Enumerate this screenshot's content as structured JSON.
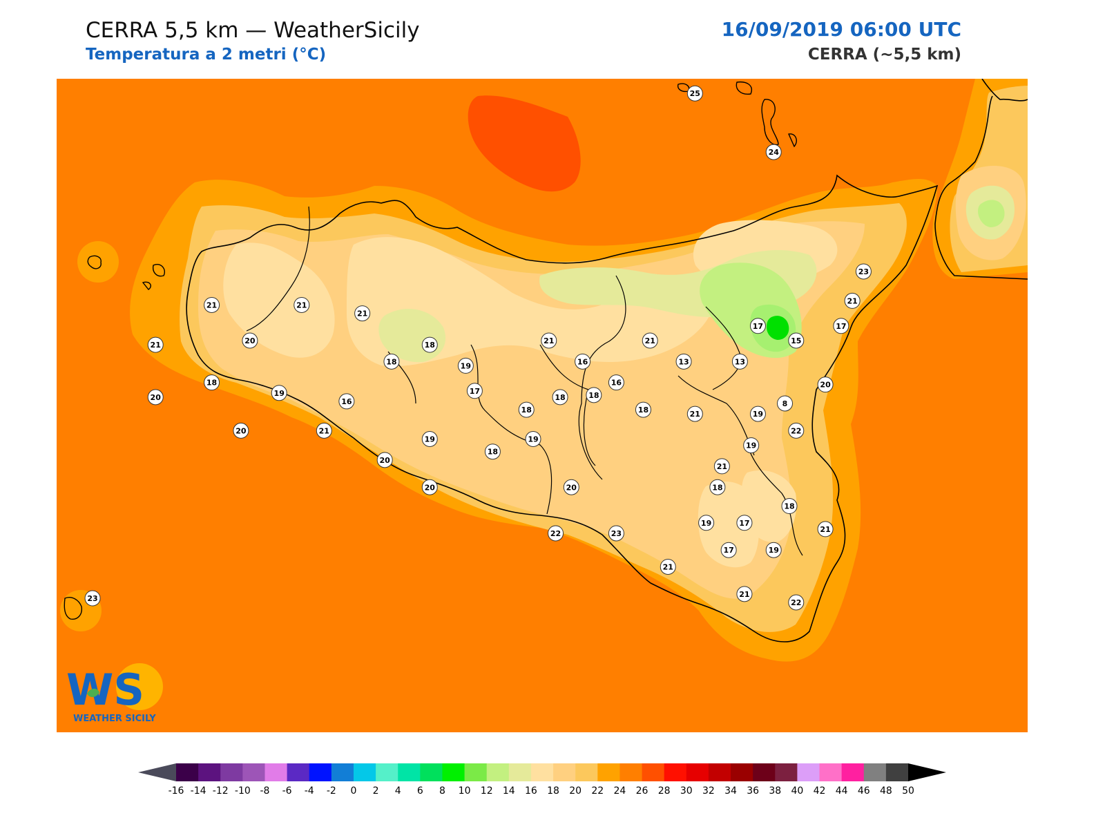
{
  "header": {
    "title": "CERRA 5,5 km — WeatherSicily",
    "subtitle": "Temperatura a 2 metri (°C)",
    "datetime": "16/09/2019 06:00 UTC",
    "model": "CERRA (~5,5 km)"
  },
  "logo": {
    "letters": "WS",
    "text": "WEATHER SICILY"
  },
  "colors": {
    "sea": "#ff7f00",
    "coast_band": "#ffa200",
    "inland_warm": "#fcc85c",
    "inland_mid": "#ffd080",
    "inland_cool": "#ffe0a0",
    "highland": "#e5ea9a",
    "etna_green": "#a6f070",
    "etna_core": "#00e000",
    "hot_spot": "#ff5000",
    "border": "#000000"
  },
  "colorbar": {
    "ticks": [
      "-16",
      "-14",
      "-12",
      "-10",
      "-8",
      "-6",
      "-4",
      "-2",
      "0",
      "2",
      "4",
      "6",
      "8",
      "10",
      "12",
      "14",
      "16",
      "18",
      "20",
      "22",
      "24",
      "26",
      "28",
      "30",
      "32",
      "34",
      "36",
      "38",
      "40",
      "42",
      "44",
      "46",
      "48",
      "50"
    ],
    "colors": [
      "#3b0049",
      "#5c137f",
      "#7e3aa1",
      "#9d55b7",
      "#e17ce8",
      "#5b29c4",
      "#0013ff",
      "#127ed6",
      "#04c8e8",
      "#55f0c9",
      "#00e4a6",
      "#00e05c",
      "#00f000",
      "#7bea47",
      "#c3f080",
      "#e5ea9a",
      "#ffe0a0",
      "#ffd080",
      "#fcc85c",
      "#ffa200",
      "#ff7f00",
      "#ff5000",
      "#ff1000",
      "#e60000",
      "#c20000",
      "#9a0000",
      "#6d0019",
      "#7c2040",
      "#dc9ef8",
      "#ff70c8",
      "#ff20a0",
      "#808080",
      "#404040"
    ]
  },
  "stations": [
    {
      "label": "25",
      "lon": 14.6,
      "lat": 39.23
    },
    {
      "label": "24",
      "lon": 14.95,
      "lat": 38.95
    },
    {
      "label": "23",
      "lon": 15.35,
      "lat": 38.38
    },
    {
      "label": "21",
      "lon": 12.45,
      "lat": 38.22
    },
    {
      "label": "21",
      "lon": 12.85,
      "lat": 38.22
    },
    {
      "label": "21",
      "lon": 13.12,
      "lat": 38.18
    },
    {
      "label": "21",
      "lon": 13.95,
      "lat": 38.05
    },
    {
      "label": "21",
      "lon": 14.4,
      "lat": 38.05
    },
    {
      "label": "21",
      "lon": 15.3,
      "lat": 38.24
    },
    {
      "label": "21",
      "lon": 12.2,
      "lat": 38.03
    },
    {
      "label": "21",
      "lon": 12.95,
      "lat": 37.62
    },
    {
      "label": "20",
      "lon": 12.62,
      "lat": 38.05
    },
    {
      "label": "20",
      "lon": 12.2,
      "lat": 37.78
    },
    {
      "label": "20",
      "lon": 12.58,
      "lat": 37.62
    },
    {
      "label": "20",
      "lon": 15.18,
      "lat": 37.84
    },
    {
      "label": "20",
      "lon": 13.22,
      "lat": 37.48
    },
    {
      "label": "20",
      "lon": 13.42,
      "lat": 37.35
    },
    {
      "label": "20",
      "lon": 14.05,
      "lat": 37.35
    },
    {
      "label": "18",
      "lon": 12.45,
      "lat": 37.85
    },
    {
      "label": "18",
      "lon": 13.25,
      "lat": 37.95
    },
    {
      "label": "18",
      "lon": 13.42,
      "lat": 38.03
    },
    {
      "label": "18",
      "lon": 13.85,
      "lat": 37.72
    },
    {
      "label": "18",
      "lon": 14.0,
      "lat": 37.78
    },
    {
      "label": "18",
      "lon": 14.15,
      "lat": 37.79
    },
    {
      "label": "18",
      "lon": 14.37,
      "lat": 37.72
    },
    {
      "label": "18",
      "lon": 13.7,
      "lat": 37.52
    },
    {
      "label": "18",
      "lon": 14.7,
      "lat": 37.35
    },
    {
      "label": "18",
      "lon": 15.02,
      "lat": 37.26
    },
    {
      "label": "19",
      "lon": 12.75,
      "lat": 37.8
    },
    {
      "label": "19",
      "lon": 13.58,
      "lat": 37.93
    },
    {
      "label": "19",
      "lon": 13.42,
      "lat": 37.58
    },
    {
      "label": "19",
      "lon": 13.88,
      "lat": 37.58
    },
    {
      "label": "19",
      "lon": 14.88,
      "lat": 37.7
    },
    {
      "label": "19",
      "lon": 14.85,
      "lat": 37.55
    },
    {
      "label": "19",
      "lon": 14.65,
      "lat": 37.18
    },
    {
      "label": "19",
      "lon": 14.95,
      "lat": 37.05
    },
    {
      "label": "17",
      "lon": 13.62,
      "lat": 37.81
    },
    {
      "label": "17",
      "lon": 14.88,
      "lat": 38.12
    },
    {
      "label": "17",
      "lon": 15.25,
      "lat": 38.12
    },
    {
      "label": "17",
      "lon": 14.82,
      "lat": 37.18
    },
    {
      "label": "17",
      "lon": 14.75,
      "lat": 37.05
    },
    {
      "label": "16",
      "lon": 13.05,
      "lat": 37.76
    },
    {
      "label": "16",
      "lon": 14.1,
      "lat": 37.95
    },
    {
      "label": "16",
      "lon": 14.25,
      "lat": 37.85
    },
    {
      "label": "15",
      "lon": 15.05,
      "lat": 38.05
    },
    {
      "label": "13",
      "lon": 14.55,
      "lat": 37.95
    },
    {
      "label": "13",
      "lon": 14.8,
      "lat": 37.95
    },
    {
      "label": "8",
      "lon": 15.0,
      "lat": 37.75
    },
    {
      "label": "21",
      "lon": 14.6,
      "lat": 37.7
    },
    {
      "label": "21",
      "lon": 14.72,
      "lat": 37.45
    },
    {
      "label": "21",
      "lon": 15.18,
      "lat": 37.15
    },
    {
      "label": "21",
      "lon": 14.48,
      "lat": 36.97
    },
    {
      "label": "21",
      "lon": 14.82,
      "lat": 36.84
    },
    {
      "label": "22",
      "lon": 15.05,
      "lat": 37.62
    },
    {
      "label": "22",
      "lon": 13.98,
      "lat": 37.13
    },
    {
      "label": "22",
      "lon": 15.05,
      "lat": 36.8
    },
    {
      "label": "23",
      "lon": 14.25,
      "lat": 37.13
    },
    {
      "label": "23",
      "lon": 11.92,
      "lat": 36.82
    }
  ]
}
